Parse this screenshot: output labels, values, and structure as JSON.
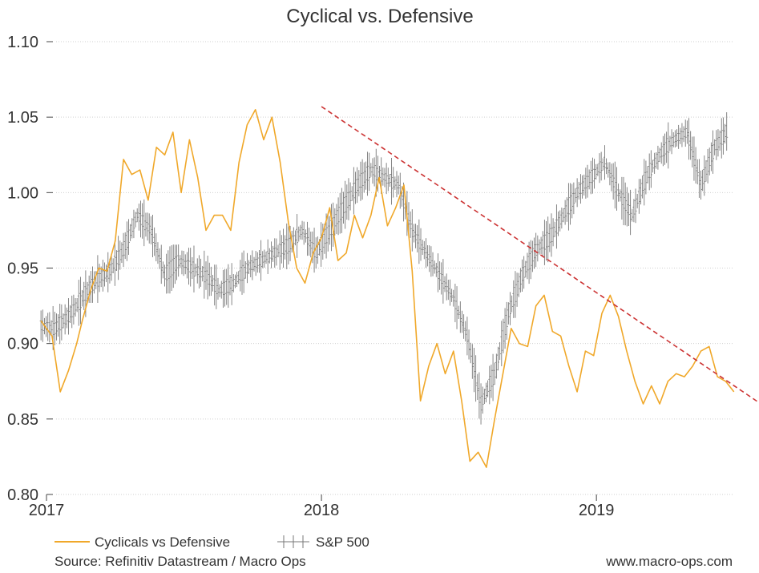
{
  "chart_data": {
    "type": "line",
    "title": "Cyclical vs. Defensive",
    "xlabel": "",
    "ylabel": "",
    "ylim": [
      0.8,
      1.1
    ],
    "y_ticks": [
      "1.10",
      "1.05",
      "1.00",
      "0.95",
      "0.90",
      "0.85",
      "0.80"
    ],
    "x_tick_labels": [
      {
        "label": "2017",
        "t": 2017.0
      },
      {
        "label": "2018",
        "t": 2018.0
      },
      {
        "label": "2019",
        "t": 2019.0
      }
    ],
    "xlim": [
      2017.0,
      2019.6
    ],
    "grid": true,
    "series": [
      {
        "name": "Cyclicals vs Defensive",
        "style": "line",
        "color": "#F0A82A",
        "x": [
          2016.98,
          2017.02,
          2017.05,
          2017.08,
          2017.11,
          2017.13,
          2017.16,
          2017.19,
          2017.22,
          2017.25,
          2017.28,
          2017.31,
          2017.34,
          2017.37,
          2017.4,
          2017.43,
          2017.46,
          2017.49,
          2017.52,
          2017.55,
          2017.58,
          2017.61,
          2017.64,
          2017.67,
          2017.7,
          2017.73,
          2017.76,
          2017.79,
          2017.82,
          2017.85,
          2017.88,
          2017.91,
          2017.94,
          2017.97,
          2018.0,
          2018.03,
          2018.06,
          2018.09,
          2018.12,
          2018.15,
          2018.18,
          2018.21,
          2018.24,
          2018.27,
          2018.3,
          2018.33,
          2018.36,
          2018.39,
          2018.42,
          2018.45,
          2018.48,
          2018.51,
          2018.54,
          2018.57,
          2018.6,
          2018.63,
          2018.66,
          2018.69,
          2018.72,
          2018.75,
          2018.78,
          2018.81,
          2018.84,
          2018.87,
          2018.9,
          2018.93,
          2018.96,
          2018.99,
          2019.02,
          2019.05,
          2019.08,
          2019.11,
          2019.14,
          2019.17,
          2019.2,
          2019.23,
          2019.26,
          2019.29,
          2019.32,
          2019.35,
          2019.38,
          2019.41,
          2019.44,
          2019.47,
          2019.5
        ],
        "values": [
          0.915,
          0.905,
          0.868,
          0.882,
          0.9,
          0.915,
          0.935,
          0.95,
          0.948,
          0.968,
          1.022,
          1.012,
          1.015,
          0.995,
          1.03,
          1.025,
          1.04,
          1.0,
          1.035,
          1.01,
          0.975,
          0.985,
          0.985,
          0.975,
          1.02,
          1.045,
          1.055,
          1.035,
          1.05,
          1.02,
          0.98,
          0.95,
          0.94,
          0.96,
          0.97,
          0.99,
          0.955,
          0.96,
          0.985,
          0.97,
          0.985,
          1.01,
          0.978,
          0.99,
          1.005,
          0.948,
          0.862,
          0.885,
          0.9,
          0.88,
          0.895,
          0.862,
          0.822,
          0.828,
          0.818,
          0.85,
          0.88,
          0.91,
          0.9,
          0.898,
          0.925,
          0.932,
          0.908,
          0.905,
          0.885,
          0.868,
          0.895,
          0.892,
          0.92,
          0.932,
          0.918,
          0.895,
          0.875,
          0.86,
          0.872,
          0.86,
          0.875,
          0.88,
          0.878,
          0.885,
          0.895,
          0.898,
          0.878,
          0.875,
          0.868
        ]
      },
      {
        "name": "S&P 500",
        "style": "ohlc",
        "color": "#777777",
        "x": [
          2016.98,
          2017.03,
          2017.08,
          2017.13,
          2017.18,
          2017.23,
          2017.28,
          2017.33,
          2017.38,
          2017.43,
          2017.48,
          2017.53,
          2017.58,
          2017.63,
          2017.68,
          2017.73,
          2017.78,
          2017.83,
          2017.88,
          2017.93,
          2017.98,
          2018.03,
          2018.08,
          2018.13,
          2018.18,
          2018.23,
          2018.28,
          2018.33,
          2018.38,
          2018.43,
          2018.48,
          2018.53,
          2018.58,
          2018.63,
          2018.68,
          2018.73,
          2018.78,
          2018.83,
          2018.88,
          2018.93,
          2018.98,
          2019.03,
          2019.08,
          2019.13,
          2019.18,
          2019.23,
          2019.28,
          2019.33,
          2019.38,
          2019.43,
          2019.48
        ],
        "values": [
          0.912,
          0.91,
          0.918,
          0.93,
          0.942,
          0.948,
          0.962,
          0.985,
          0.975,
          0.945,
          0.955,
          0.95,
          0.945,
          0.935,
          0.94,
          0.95,
          0.955,
          0.96,
          0.965,
          0.975,
          0.96,
          0.975,
          0.99,
          1.005,
          1.015,
          1.01,
          1.005,
          0.975,
          0.96,
          0.945,
          0.93,
          0.905,
          0.86,
          0.88,
          0.92,
          0.945,
          0.962,
          0.97,
          0.985,
          1.0,
          1.01,
          1.02,
          1.0,
          0.985,
          1.01,
          1.025,
          1.035,
          1.04,
          1.005,
          1.03,
          1.042
        ]
      }
    ],
    "trendline": {
      "style": "dashed",
      "color": "#CC3333",
      "from": {
        "t": 2018.0,
        "y": 1.057
      },
      "to": {
        "t": 2019.72,
        "y": 0.845
      }
    },
    "legend": [
      {
        "name": "Cyclicals vs Defensive",
        "style": "line",
        "color": "#F0A82A"
      },
      {
        "name": "S&P 500",
        "style": "ohlc",
        "color": "#777777"
      }
    ],
    "legend_position": "bottom-left",
    "source_note": "Source: Refinitiv Datastream / Macro Ops",
    "website": "www.macro-ops.com"
  }
}
